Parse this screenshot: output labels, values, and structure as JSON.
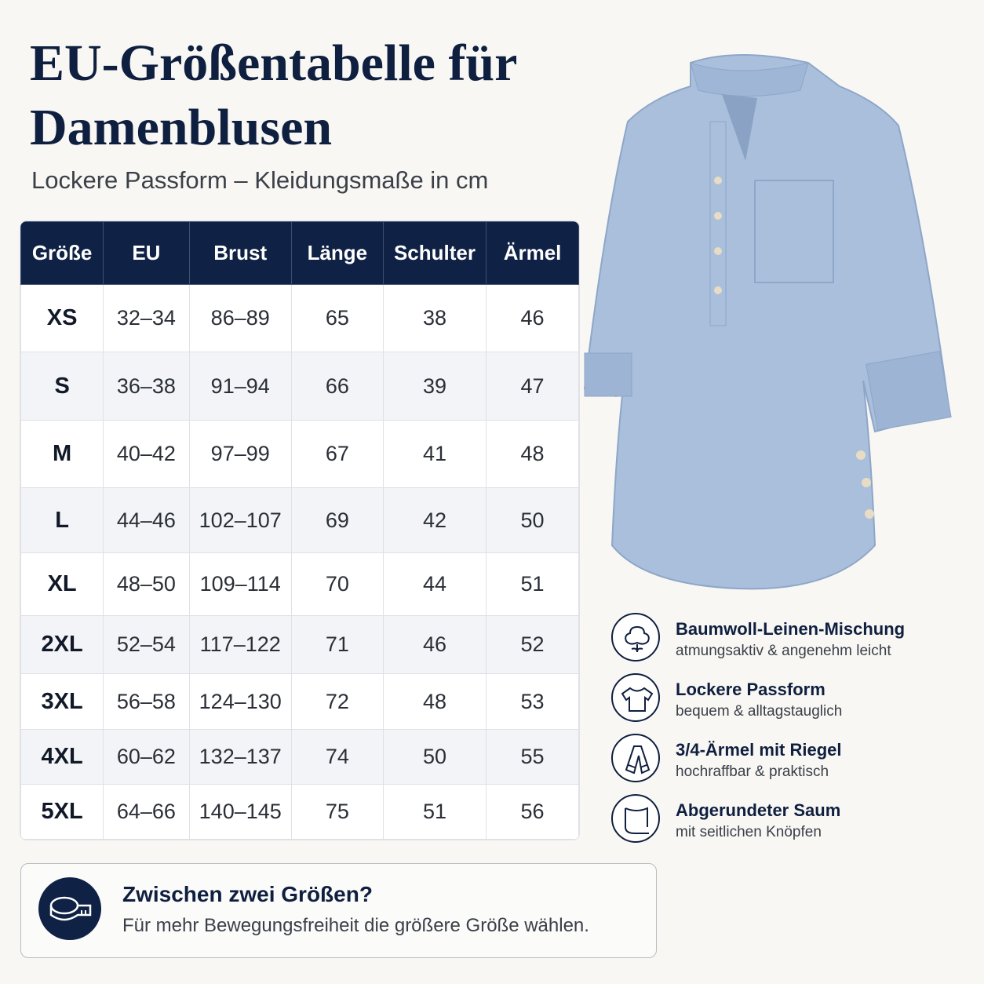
{
  "header": {
    "title_lines": [
      "EU-Größentabelle für",
      "Damenblusen"
    ],
    "subtitle": "Lockere Passform – Kleidungsmaße in cm"
  },
  "table": {
    "columns": [
      "Größe",
      "EU",
      "Brust",
      "Länge",
      "Schulter",
      "Ärmel"
    ],
    "rows": [
      [
        "XS",
        "32–34",
        "86–89",
        65,
        38,
        46
      ],
      [
        "S",
        "36–38",
        "91–94",
        66,
        39,
        47
      ],
      [
        "M",
        "40–42",
        "97–99",
        67,
        41,
        48
      ],
      [
        "L",
        "44–46",
        "102–107",
        69,
        42,
        50
      ],
      [
        "XL",
        "48–50",
        "109–114",
        70,
        44,
        51
      ],
      [
        "2XL",
        "52–54",
        "117–122",
        71,
        46,
        52
      ],
      [
        "3XL",
        "56–58",
        "124–130",
        72,
        48,
        53
      ],
      [
        "4XL",
        "60–62",
        "132–137",
        74,
        50,
        55
      ],
      [
        "5XL",
        "64–66",
        "140–145",
        75,
        51,
        56
      ]
    ]
  },
  "features": [
    {
      "title": "Baumwoll-Leinen-Mischung",
      "text": "atmungsaktiv & angenehm leicht"
    },
    {
      "title": "Lockere Passform",
      "text": "bequem & alltagstauglich"
    },
    {
      "title": "3/4-Ärmel mit Riegel",
      "text": "hochraffbar & praktisch"
    },
    {
      "title": "Abgerundeter Saum",
      "text": "mit seitlichen Knöpfen"
    }
  ],
  "tip": {
    "title": "Zwischen zwei Größen?",
    "text": "Für mehr Bewegungsfreiheit die größere Größe wählen."
  }
}
